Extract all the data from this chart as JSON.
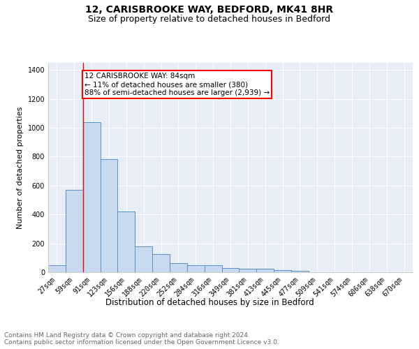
{
  "title_line1": "12, CARISBROOKE WAY, BEDFORD, MK41 8HR",
  "title_line2": "Size of property relative to detached houses in Bedford",
  "xlabel": "Distribution of detached houses by size in Bedford",
  "ylabel": "Number of detached properties",
  "categories": [
    "27sqm",
    "59sqm",
    "91sqm",
    "123sqm",
    "156sqm",
    "188sqm",
    "220sqm",
    "252sqm",
    "284sqm",
    "316sqm",
    "349sqm",
    "381sqm",
    "413sqm",
    "445sqm",
    "477sqm",
    "509sqm",
    "541sqm",
    "574sqm",
    "606sqm",
    "638sqm",
    "670sqm"
  ],
  "values": [
    47,
    572,
    1040,
    785,
    420,
    180,
    125,
    65,
    50,
    50,
    27,
    22,
    22,
    13,
    10,
    0,
    0,
    0,
    0,
    0,
    0
  ],
  "bar_color": "#c8daf0",
  "bar_edge_color": "#5b8ec5",
  "red_line_x": 1.5,
  "annotation_text": "12 CARISBROOKE WAY: 84sqm\n← 11% of detached houses are smaller (380)\n88% of semi-detached houses are larger (2,939) →",
  "annotation_box_color": "white",
  "annotation_box_edge_color": "red",
  "ylim": [
    0,
    1450
  ],
  "yticks": [
    0,
    200,
    400,
    600,
    800,
    1000,
    1200,
    1400
  ],
  "background_color": "#e8eef8",
  "footer_text": "Contains HM Land Registry data © Crown copyright and database right 2024.\nContains public sector information licensed under the Open Government Licence v3.0.",
  "title_fontsize": 10,
  "subtitle_fontsize": 9,
  "xlabel_fontsize": 8.5,
  "ylabel_fontsize": 8,
  "tick_fontsize": 7,
  "footer_fontsize": 6.5,
  "annot_fontsize": 7.5
}
